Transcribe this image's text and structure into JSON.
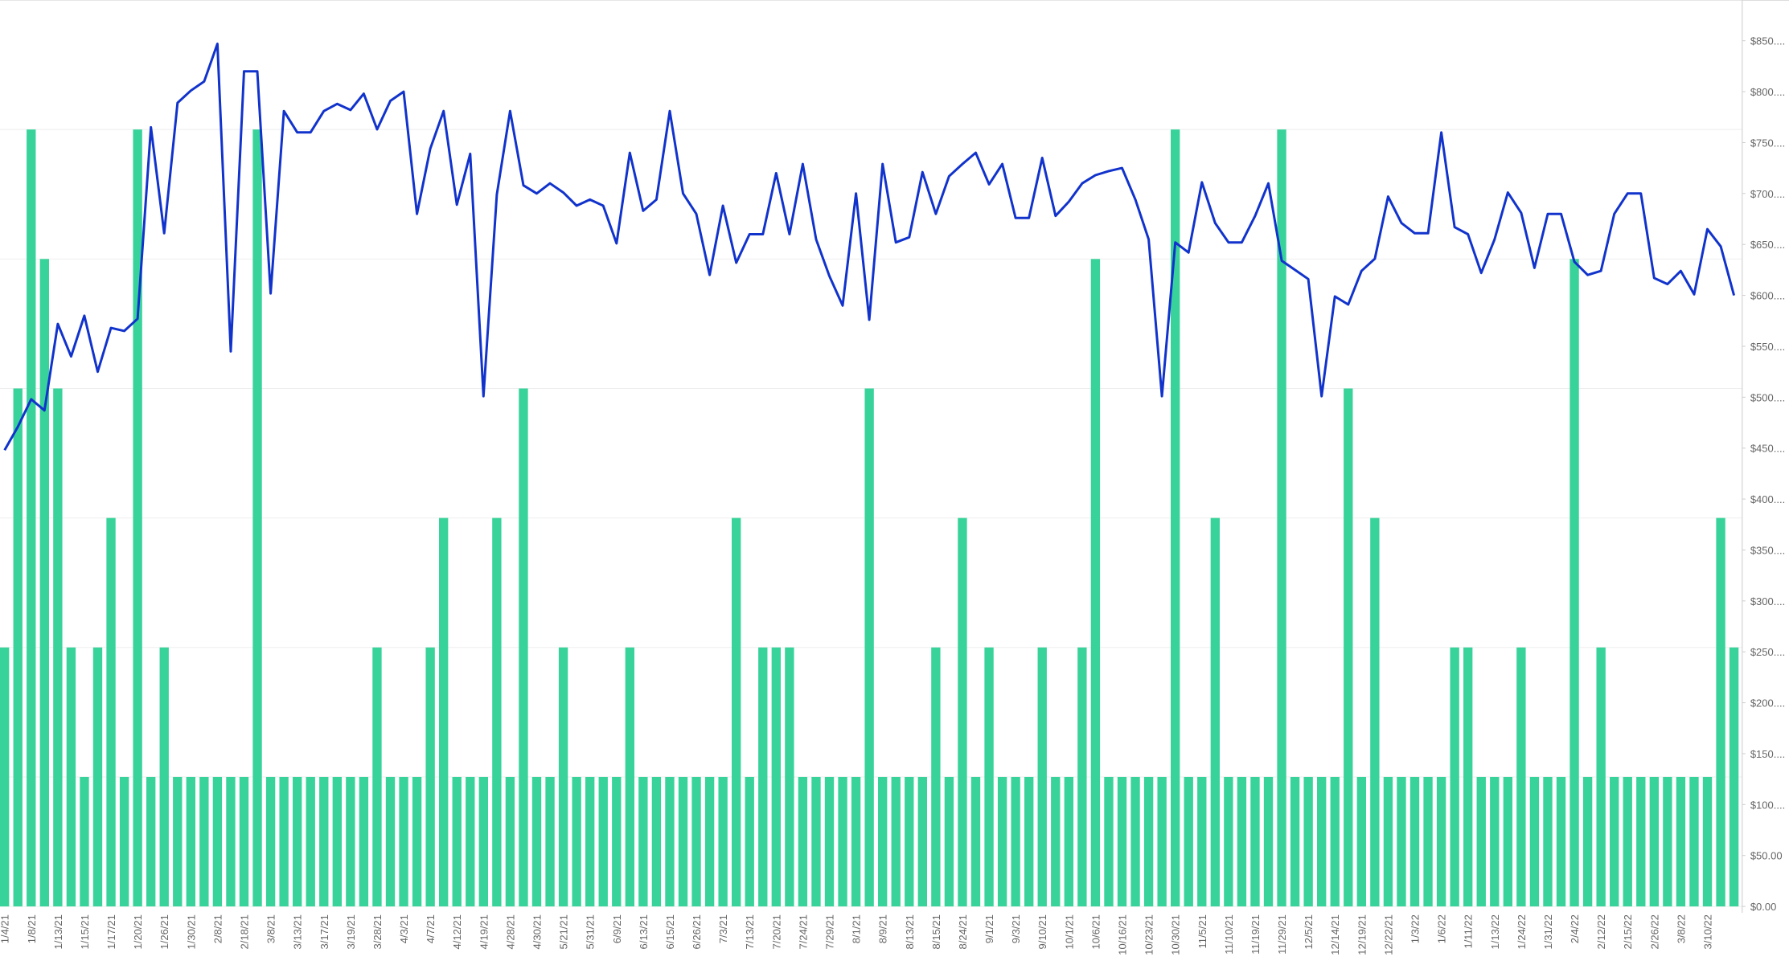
{
  "chart_data": {
    "type": "combo",
    "categories": [
      "1/4/21",
      null,
      "1/8/21",
      null,
      "1/13/21",
      null,
      "1/15/21",
      null,
      "1/17/21",
      null,
      "1/20/21",
      null,
      "1/26/21",
      null,
      "1/30/21",
      null,
      "2/8/21",
      null,
      "2/18/21",
      null,
      "3/8/21",
      null,
      "3/13/21",
      null,
      "3/17/21",
      null,
      "3/19/21",
      null,
      "3/28/21",
      null,
      "4/3/21",
      null,
      "4/7/21",
      null,
      "4/12/21",
      null,
      "4/19/21",
      null,
      "4/28/21",
      null,
      "4/30/21",
      null,
      "5/21/21",
      null,
      "5/31/21",
      null,
      "6/9/21",
      null,
      "6/13/21",
      null,
      "6/15/21",
      null,
      "6/26/21",
      null,
      "7/3/21",
      null,
      "7/13/21",
      null,
      "7/20/21",
      null,
      "7/24/21",
      null,
      "7/29/21",
      null,
      "8/1/21",
      null,
      "8/9/21",
      null,
      "8/13/21",
      null,
      "8/15/21",
      null,
      "8/24/21",
      null,
      "9/1/21",
      null,
      "9/3/21",
      null,
      "9/10/21",
      null,
      "10/1/21",
      null,
      "10/6/21",
      null,
      "10/16/21",
      null,
      "10/23/21",
      null,
      "10/30/21",
      null,
      "11/5/21",
      null,
      "11/10/21",
      null,
      "11/19/21",
      null,
      "11/29/21",
      null,
      "12/5/21",
      null,
      "12/14/21",
      null,
      "12/19/21",
      null,
      "12/22/21",
      null,
      "1/3/22",
      null,
      "1/6/22",
      null,
      "1/11/22",
      null,
      "1/13/22",
      null,
      "1/24/22",
      null,
      "1/31/22",
      null,
      "2/4/22",
      null,
      "2/12/22",
      null,
      "2/15/22",
      null,
      "2/26/22",
      null,
      "3/8/22",
      null,
      "3/10/22",
      null,
      null
    ],
    "series": [
      {
        "type": "bar",
        "axis": "y2",
        "color": "#38d39a",
        "values": [
          2,
          4,
          6,
          5,
          4,
          2,
          1,
          2,
          3,
          1,
          6,
          1,
          2,
          1,
          1,
          1,
          1,
          1,
          1,
          6,
          1,
          1,
          1,
          1,
          1,
          1,
          1,
          1,
          2,
          1,
          1,
          1,
          2,
          3,
          1,
          1,
          1,
          3,
          1,
          4,
          1,
          1,
          2,
          1,
          1,
          1,
          1,
          2,
          1,
          1,
          1,
          1,
          1,
          1,
          1,
          3,
          1,
          2,
          2,
          2,
          1,
          1,
          1,
          1,
          1,
          4,
          1,
          1,
          1,
          1,
          2,
          1,
          3,
          1,
          2,
          1,
          1,
          1,
          2,
          1,
          1,
          2,
          5,
          1,
          1,
          1,
          1,
          1,
          6,
          1,
          1,
          3,
          1,
          1,
          1,
          1,
          6,
          1,
          1,
          1,
          1,
          4,
          1,
          3,
          1,
          1,
          1,
          1,
          1,
          2,
          2,
          1,
          1,
          1,
          2,
          1,
          1,
          1,
          5,
          1,
          2,
          1,
          1,
          1,
          1,
          1,
          1,
          1,
          1,
          3,
          2
        ]
      },
      {
        "type": "line",
        "color": "#1133cc",
        "values": [
          448,
          471,
          498,
          487,
          572,
          540,
          580,
          525,
          568,
          565,
          577,
          765,
          661,
          789,
          801,
          810,
          847,
          545,
          820,
          820,
          602,
          781,
          760,
          760,
          781,
          788,
          782,
          798,
          763,
          791,
          800,
          680,
          744,
          781,
          689,
          739,
          501,
          699,
          781,
          708,
          700,
          710,
          701,
          688,
          694,
          688,
          651,
          740,
          683,
          694,
          781,
          700,
          680,
          620,
          688,
          632,
          660,
          660,
          720,
          660,
          729,
          655,
          619,
          590,
          700,
          576,
          729,
          652,
          657,
          721,
          680,
          717,
          729,
          740,
          709,
          729,
          676,
          676,
          735,
          678,
          692,
          710,
          718,
          722,
          725,
          694,
          655,
          501,
          652,
          642,
          711,
          671,
          652,
          652,
          678,
          710,
          634,
          625,
          616,
          501,
          599,
          591,
          624,
          636,
          697,
          671,
          661,
          661,
          760,
          667,
          660,
          622,
          655,
          701,
          681,
          627,
          680,
          680,
          633,
          620,
          624,
          680,
          700,
          700,
          617,
          611,
          624,
          601,
          665,
          648,
          600
        ]
      }
    ],
    "ylim": [
      0,
      890
    ],
    "yticks": [
      {
        "value": 0,
        "label": "$0.00"
      },
      {
        "value": 50,
        "label": "$50.00"
      },
      {
        "value": 100,
        "label": "$100...."
      },
      {
        "value": 150,
        "label": "$150...."
      },
      {
        "value": 200,
        "label": "$200...."
      },
      {
        "value": 250,
        "label": "$250...."
      },
      {
        "value": 300,
        "label": "$300...."
      },
      {
        "value": 350,
        "label": "$350...."
      },
      {
        "value": 400,
        "label": "$400...."
      },
      {
        "value": 450,
        "label": "$450...."
      },
      {
        "value": 500,
        "label": "$500...."
      },
      {
        "value": 550,
        "label": "$550...."
      },
      {
        "value": 600,
        "label": "$600...."
      },
      {
        "value": 650,
        "label": "$650...."
      },
      {
        "value": 700,
        "label": "$700...."
      },
      {
        "value": 750,
        "label": "$750...."
      },
      {
        "value": 800,
        "label": "$800...."
      },
      {
        "value": 850,
        "label": "$850...."
      }
    ],
    "y2lim": [
      0,
      7
    ],
    "y2ticks": [
      0,
      1,
      2,
      3,
      4,
      5,
      6,
      7
    ],
    "grid": true
  }
}
